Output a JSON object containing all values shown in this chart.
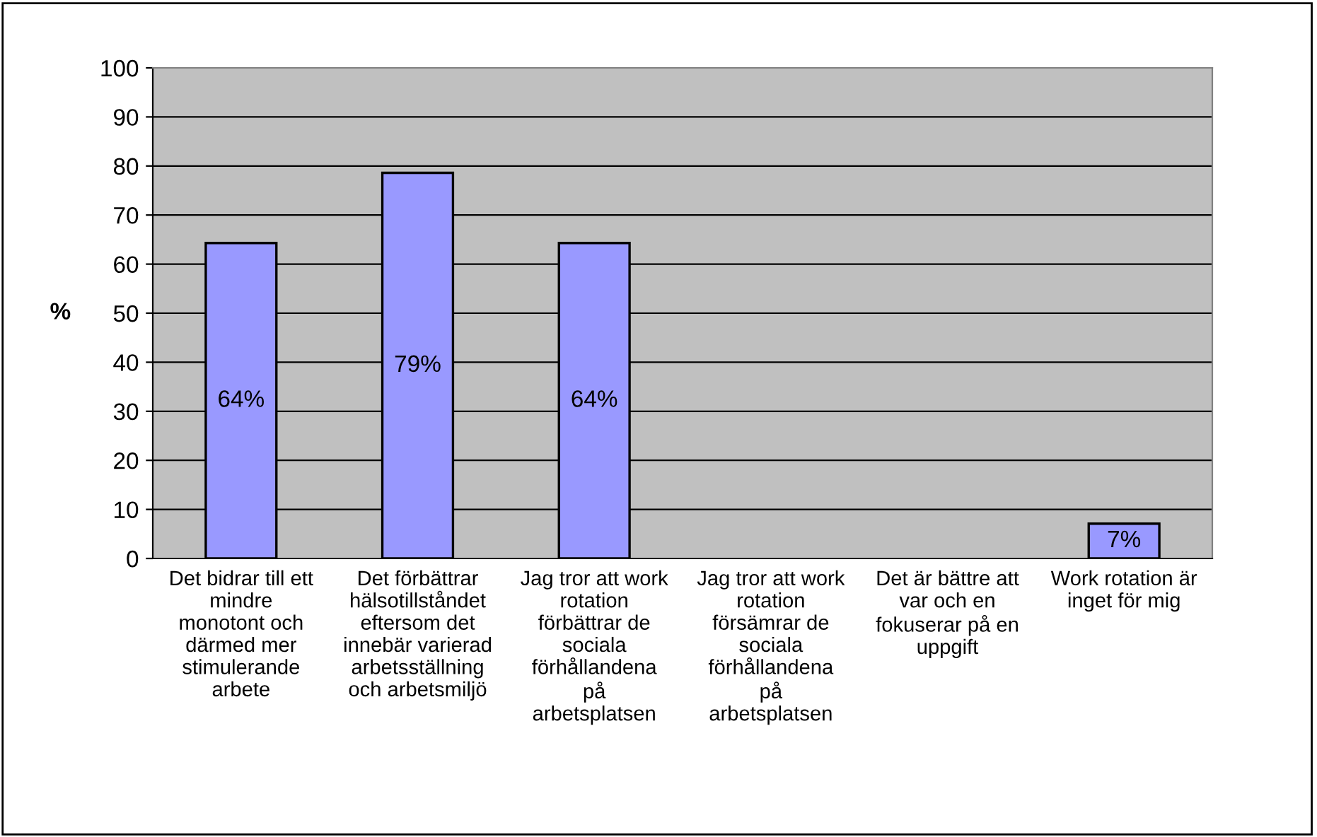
{
  "chart_data": {
    "type": "bar",
    "ylabel": "%",
    "categories": [
      "Det bidrar till ett\nmindre\nmonotont och\ndärmed mer\nstimulerande\narbete",
      "Det förbättrar\nhälsotillståndet\neftersom det\ninnebär varierad\narbetsställning\noch arbetsmiljö",
      "Jag tror att work\nrotation\nförbättrar de\nsociala\nförhållandena\npå\narbetsplatsen",
      "Jag tror att work\nrotation\nförsämrar de\nsociala\nförhållandena\npå\narbetsplatsen",
      "Det är bättre att\nvar och en\nfokuserar på en\nuppgift",
      "Work rotation är\ninget för mig"
    ],
    "values": [
      64.3,
      78.6,
      64.3,
      null,
      null,
      7.1
    ],
    "value_labels": [
      "64%",
      "79%",
      "64%",
      null,
      null,
      "7%"
    ],
    "color": "#9999ff",
    "ylim": [
      0,
      100
    ],
    "yticks": [
      0,
      10,
      20,
      30,
      40,
      50,
      60,
      70,
      80,
      90,
      100
    ],
    "grid": "y"
  }
}
